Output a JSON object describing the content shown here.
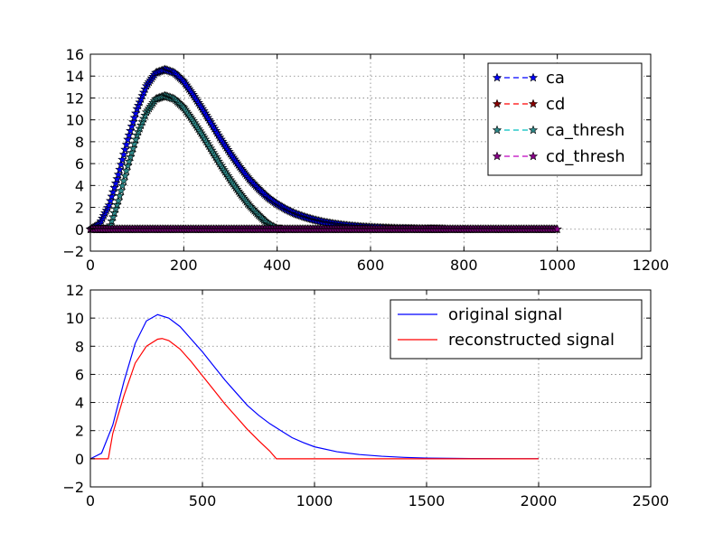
{
  "chart_data": [
    {
      "type": "line",
      "title": "",
      "xlabel": "",
      "ylabel": "",
      "xlim": [
        0,
        1200
      ],
      "ylim": [
        -2,
        16
      ],
      "xticks": [
        0,
        200,
        400,
        600,
        800,
        1000,
        1200
      ],
      "yticks": [
        -2,
        0,
        2,
        4,
        6,
        8,
        10,
        12,
        14,
        16
      ],
      "xtick_labels": [
        "0",
        "200",
        "400",
        "600",
        "800",
        "1000",
        "1200"
      ],
      "ytick_labels": [
        "−2",
        "0",
        "2",
        "4",
        "6",
        "8",
        "10",
        "12",
        "14",
        "16"
      ],
      "grid": true,
      "legend_position": "top-right",
      "marker": "star",
      "linestyle": "dashed",
      "series": [
        {
          "name": "ca",
          "color": "#0000ff",
          "marker_face": "#0000ff",
          "x": [
            0,
            20,
            40,
            60,
            80,
            100,
            120,
            140,
            160,
            180,
            200,
            220,
            240,
            260,
            280,
            300,
            320,
            340,
            360,
            380,
            400,
            420,
            440,
            460,
            480,
            500,
            520,
            540,
            560,
            580,
            600,
            620,
            640,
            660,
            680,
            700,
            720,
            740,
            760
          ],
          "y": [
            0,
            0.5,
            2.2,
            5.0,
            8.2,
            11.0,
            13.1,
            14.3,
            14.6,
            14.3,
            13.5,
            12.3,
            11.0,
            9.6,
            8.2,
            6.9,
            5.7,
            4.6,
            3.7,
            2.9,
            2.3,
            1.8,
            1.4,
            1.1,
            0.85,
            0.65,
            0.5,
            0.38,
            0.29,
            0.22,
            0.17,
            0.13,
            0.1,
            0.07,
            0.05,
            0.04,
            0.03,
            0.02,
            0.01
          ]
        },
        {
          "name": "cd",
          "color": "#ff0000",
          "marker_face": "#8b0000",
          "x": [
            0,
            1000
          ],
          "y": [
            0,
            0
          ]
        },
        {
          "name": "ca_thresh",
          "color": "#00bfbf",
          "marker_face": "#2e8b8b",
          "x": [
            0,
            20,
            40,
            60,
            80,
            100,
            120,
            140,
            160,
            180,
            200,
            220,
            240,
            260,
            280,
            300,
            320,
            340,
            360,
            380,
            400,
            410
          ],
          "y": [
            0,
            0,
            0,
            2.6,
            5.8,
            8.6,
            10.7,
            11.9,
            12.2,
            11.9,
            11.1,
            9.9,
            8.6,
            7.2,
            5.8,
            4.5,
            3.3,
            2.2,
            1.3,
            0.5,
            0.05,
            0
          ]
        },
        {
          "name": "cd_thresh",
          "color": "#bf00bf",
          "marker_face": "#8b008b",
          "x": [
            0,
            1000
          ],
          "y": [
            0,
            0
          ]
        }
      ]
    },
    {
      "type": "line",
      "title": "",
      "xlabel": "",
      "ylabel": "",
      "xlim": [
        0,
        2500
      ],
      "ylim": [
        -2,
        12
      ],
      "xticks": [
        0,
        500,
        1000,
        1500,
        2000,
        2500
      ],
      "yticks": [
        -2,
        0,
        2,
        4,
        6,
        8,
        10,
        12
      ],
      "xtick_labels": [
        "0",
        "500",
        "1000",
        "1500",
        "2000",
        "2500"
      ],
      "ytick_labels": [
        "−2",
        "0",
        "2",
        "4",
        "6",
        "8",
        "10",
        "12"
      ],
      "grid": true,
      "legend_position": "top-right",
      "series": [
        {
          "name": "original signal",
          "color": "#0000ff",
          "x": [
            0,
            50,
            100,
            150,
            200,
            250,
            300,
            350,
            400,
            450,
            500,
            550,
            600,
            650,
            700,
            750,
            800,
            850,
            900,
            950,
            1000,
            1100,
            1200,
            1300,
            1400,
            1500,
            1600,
            1700,
            1800,
            1900,
            2000
          ],
          "y": [
            0,
            0.4,
            2.4,
            5.5,
            8.2,
            9.8,
            10.25,
            10.0,
            9.4,
            8.5,
            7.6,
            6.6,
            5.6,
            4.7,
            3.8,
            3.1,
            2.5,
            2.0,
            1.5,
            1.15,
            0.85,
            0.5,
            0.3,
            0.18,
            0.1,
            0.05,
            0.03,
            0.015,
            0.008,
            0.004,
            0
          ]
        },
        {
          "name": "reconstructed signal",
          "color": "#ff0000",
          "x": [
            0,
            80,
            100,
            150,
            200,
            250,
            300,
            320,
            350,
            400,
            450,
            500,
            550,
            600,
            650,
            700,
            750,
            800,
            830,
            900,
            1000,
            1500,
            2000
          ],
          "y": [
            0,
            0,
            1.8,
            4.5,
            6.8,
            8.0,
            8.5,
            8.55,
            8.4,
            7.8,
            6.9,
            5.9,
            4.9,
            3.9,
            3.0,
            2.1,
            1.3,
            0.55,
            0,
            0,
            0,
            0,
            0
          ]
        }
      ]
    }
  ]
}
